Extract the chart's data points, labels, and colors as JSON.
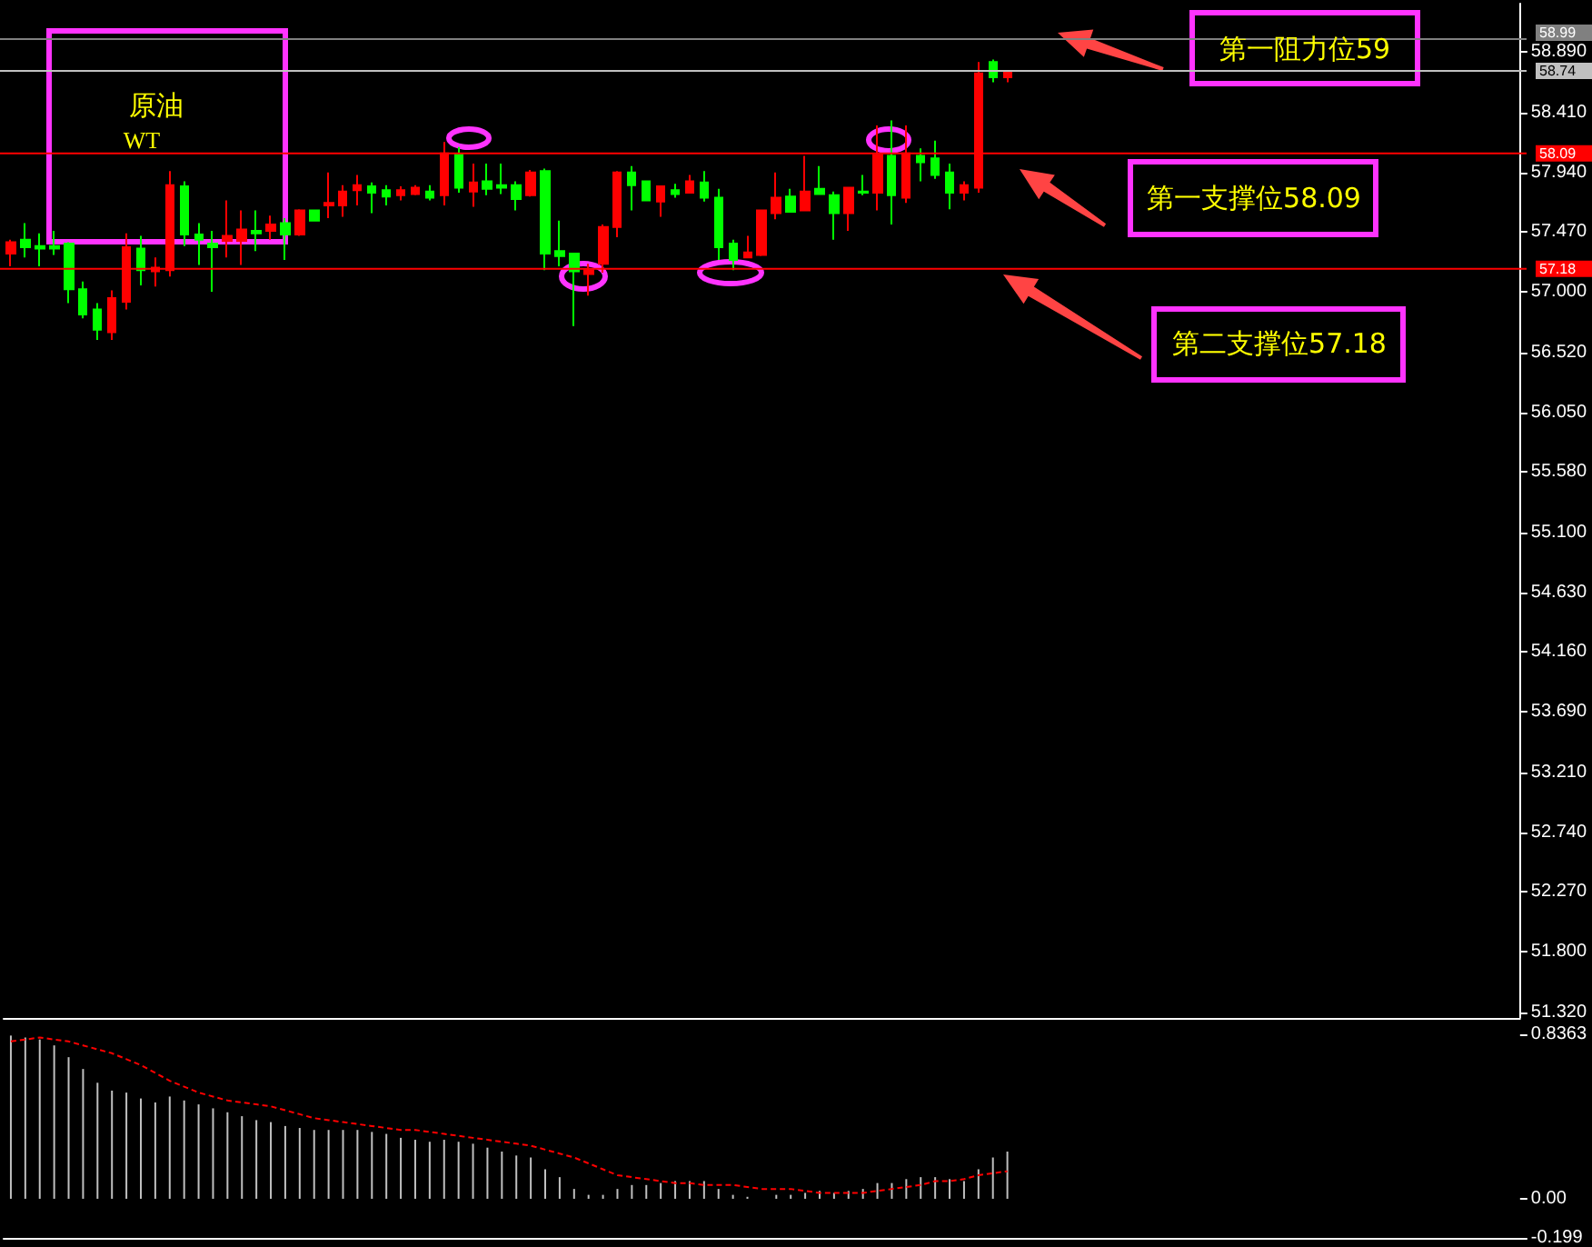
{
  "chart_data": [
    {
      "type": "candlestick",
      "tick_labels": "y",
      "categories": [
        null,
        null,
        null,
        null,
        null,
        null,
        null,
        null,
        null,
        null,
        null,
        null,
        null,
        null,
        null,
        null,
        null,
        null,
        null,
        null,
        null,
        null,
        null,
        null,
        null,
        null,
        null,
        null,
        null,
        null,
        null,
        null,
        null,
        null,
        null,
        null,
        null,
        null,
        null,
        null,
        null,
        null,
        null,
        null,
        null,
        null,
        null,
        null,
        null,
        null,
        null,
        null,
        null,
        null,
        null,
        null,
        null,
        null,
        null,
        null,
        null,
        null,
        null,
        null,
        null,
        null,
        null,
        null,
        null,
        null,
        null,
        null,
        null,
        null,
        null,
        null,
        null,
        null,
        null,
        null,
        null,
        null,
        null,
        null,
        null,
        null,
        null,
        null,
        null,
        null,
        null,
        null,
        null,
        null,
        null,
        null,
        null,
        null,
        null,
        null,
        null,
        null,
        null,
        null,
        null
      ],
      "ohlc": [
        [
          57.3,
          57.41,
          57.2,
          57.39
        ],
        [
          57.41,
          57.54,
          57.27,
          57.35
        ],
        [
          57.36,
          57.46,
          57.2,
          57.34
        ],
        [
          57.36,
          57.48,
          57.29,
          57.34
        ],
        [
          57.38,
          57.39,
          56.91,
          57.02
        ],
        [
          57.02,
          57.08,
          56.79,
          56.82
        ],
        [
          56.86,
          56.91,
          56.62,
          56.7
        ],
        [
          56.68,
          57.01,
          56.62,
          56.95
        ],
        [
          56.92,
          57.46,
          56.86,
          57.35
        ],
        [
          57.34,
          57.44,
          57.05,
          57.17
        ],
        [
          57.16,
          57.27,
          57.04,
          57.19
        ],
        [
          57.17,
          57.95,
          57.12,
          57.84
        ],
        [
          57.83,
          57.87,
          57.36,
          57.45
        ],
        [
          57.45,
          57.54,
          57.21,
          57.41
        ],
        [
          57.38,
          57.48,
          57.0,
          57.35
        ],
        [
          57.4,
          57.72,
          57.27,
          57.44
        ],
        [
          57.4,
          57.64,
          57.21,
          57.49
        ],
        [
          57.48,
          57.64,
          57.32,
          57.46
        ],
        [
          57.48,
          57.6,
          57.41,
          57.53
        ],
        [
          57.54,
          57.58,
          57.25,
          57.45
        ],
        [
          57.45,
          57.65,
          57.44,
          57.64
        ],
        [
          57.64,
          57.64,
          57.56,
          57.56
        ],
        [
          57.68,
          57.94,
          57.58,
          57.7
        ],
        [
          57.68,
          57.84,
          57.59,
          57.79
        ],
        [
          57.8,
          57.92,
          57.68,
          57.84
        ],
        [
          57.83,
          57.86,
          57.62,
          57.78
        ],
        [
          57.8,
          57.84,
          57.68,
          57.75
        ],
        [
          57.76,
          57.83,
          57.72,
          57.8
        ],
        [
          57.77,
          57.84,
          57.76,
          57.82
        ],
        [
          57.79,
          57.84,
          57.72,
          57.74
        ],
        [
          57.76,
          58.18,
          57.68,
          58.09
        ],
        [
          58.08,
          58.14,
          57.78,
          57.82
        ],
        [
          57.79,
          58.01,
          57.67,
          57.86
        ],
        [
          57.87,
          58.01,
          57.76,
          57.81
        ],
        [
          57.84,
          58.01,
          57.77,
          57.82
        ],
        [
          57.84,
          57.87,
          57.64,
          57.73
        ],
        [
          57.76,
          57.96,
          57.75,
          57.94
        ],
        [
          57.95,
          57.97,
          57.17,
          57.3
        ],
        [
          57.32,
          57.56,
          57.2,
          57.28
        ],
        [
          57.3,
          57.3,
          56.73,
          57.16
        ],
        [
          57.14,
          57.22,
          56.97,
          57.17
        ],
        [
          57.22,
          57.53,
          57.15,
          57.51
        ],
        [
          57.51,
          57.95,
          57.43,
          57.94
        ],
        [
          57.94,
          57.99,
          57.64,
          57.84
        ],
        [
          57.87,
          57.87,
          57.72,
          57.72
        ],
        [
          57.71,
          57.83,
          57.59,
          57.83
        ],
        [
          57.8,
          57.85,
          57.74,
          57.77
        ],
        [
          57.78,
          57.92,
          57.78,
          57.87
        ],
        [
          57.86,
          57.95,
          57.71,
          57.74
        ],
        [
          57.74,
          57.81,
          57.25,
          57.35
        ],
        [
          57.38,
          57.41,
          57.17,
          57.25
        ],
        [
          57.27,
          57.44,
          57.27,
          57.31
        ],
        [
          57.29,
          57.64,
          57.28,
          57.64
        ],
        [
          57.62,
          57.94,
          57.57,
          57.74
        ],
        [
          57.75,
          57.81,
          57.63,
          57.63
        ],
        [
          57.64,
          58.07,
          57.64,
          57.79
        ],
        [
          57.81,
          57.99,
          57.77,
          57.77
        ],
        [
          57.76,
          57.79,
          57.41,
          57.62
        ],
        [
          57.62,
          57.82,
          57.48,
          57.82
        ],
        [
          57.79,
          57.92,
          57.76,
          57.78
        ],
        [
          57.78,
          58.31,
          57.64,
          58.08
        ],
        [
          58.07,
          58.35,
          57.53,
          57.76
        ],
        [
          57.74,
          58.31,
          57.7,
          58.09
        ],
        [
          58.07,
          58.13,
          57.87,
          58.02
        ],
        [
          58.05,
          58.19,
          57.89,
          57.92
        ],
        [
          57.94,
          58.01,
          57.65,
          57.78
        ],
        [
          57.78,
          57.87,
          57.72,
          57.84
        ],
        [
          57.82,
          58.81,
          57.78,
          58.72
        ],
        [
          58.81,
          58.83,
          58.65,
          58.69
        ],
        [
          58.69,
          58.74,
          58.65,
          58.74
        ],
        null,
        null,
        null,
        null,
        null,
        null,
        null,
        null,
        null,
        null,
        null,
        null,
        null,
        null,
        null,
        null,
        null,
        null,
        null,
        null,
        null,
        null,
        null,
        null,
        null,
        null,
        null,
        null,
        null,
        null,
        null,
        null,
        null,
        null,
        null
      ],
      "ylim": [
        51.28,
        59.27
      ],
      "yticks": [
        {
          "value": 58.89,
          "label": "58.890"
        },
        {
          "value": 58.41,
          "label": "58.410"
        },
        {
          "value": 57.94,
          "label": "57.940"
        },
        {
          "value": 57.47,
          "label": "57.470"
        },
        {
          "value": 57.0,
          "label": "57.000"
        },
        {
          "value": 56.52,
          "label": "56.520"
        },
        {
          "value": 56.05,
          "label": "56.050"
        },
        {
          "value": 55.58,
          "label": "55.580"
        },
        {
          "value": 55.1,
          "label": "55.100"
        },
        {
          "value": 54.63,
          "label": "54.630"
        },
        {
          "value": 54.16,
          "label": "54.160"
        },
        {
          "value": 53.69,
          "label": "53.690"
        },
        {
          "value": 53.21,
          "label": "53.210"
        },
        {
          "value": 52.74,
          "label": "52.740"
        },
        {
          "value": 52.27,
          "label": "52.270"
        },
        {
          "value": 51.8,
          "label": "51.800"
        },
        {
          "value": 51.32,
          "label": "51.320"
        }
      ],
      "ref_lines": [
        {
          "axis": "y",
          "value": 58.99,
          "label": "58.99",
          "color": "#808080"
        },
        {
          "axis": "y",
          "value": 58.74,
          "label": "58.74",
          "color": "#c0c0c0"
        },
        {
          "axis": "y",
          "value": 58.09,
          "label": "58.09",
          "color": "#ff0000"
        },
        {
          "axis": "y",
          "value": 57.18,
          "label": "57.18",
          "color": "#ff0000"
        }
      ],
      "annotations": [
        "原油",
        "WT",
        "第一阻力位59",
        "第一支撑位58.09",
        "第二支撑位57.18"
      ]
    },
    {
      "type": "bar",
      "tick_labels": "y",
      "categories": [
        null,
        null,
        null,
        null,
        null,
        null,
        null,
        null,
        null,
        null,
        null,
        null,
        null,
        null,
        null,
        null,
        null,
        null,
        null,
        null,
        null,
        null,
        null,
        null,
        null,
        null,
        null,
        null,
        null,
        null,
        null,
        null,
        null,
        null,
        null,
        null,
        null,
        null,
        null,
        null,
        null,
        null,
        null,
        null,
        null,
        null,
        null,
        null,
        null,
        null,
        null,
        null,
        null,
        null,
        null,
        null,
        null,
        null,
        null,
        null,
        null,
        null,
        null,
        null,
        null,
        null,
        null,
        null,
        null,
        null,
        null,
        null,
        null,
        null,
        null,
        null,
        null,
        null,
        null,
        null,
        null,
        null,
        null,
        null,
        null,
        null,
        null,
        null,
        null,
        null,
        null,
        null,
        null,
        null,
        null,
        null,
        null,
        null,
        null,
        null,
        null,
        null,
        null,
        null,
        null
      ],
      "series": [
        {
          "type": "bar",
          "color": "#c0c0c0",
          "values": [
            0.83,
            0.82,
            0.81,
            0.78,
            0.72,
            0.66,
            0.59,
            0.55,
            0.54,
            0.51,
            0.49,
            0.52,
            0.5,
            0.48,
            0.46,
            0.44,
            0.42,
            0.4,
            0.39,
            0.37,
            0.36,
            0.35,
            0.35,
            0.35,
            0.35,
            0.34,
            0.33,
            0.31,
            0.3,
            0.29,
            0.3,
            0.29,
            0.28,
            0.26,
            0.24,
            0.22,
            0.21,
            0.15,
            0.11,
            0.05,
            0.02,
            0.02,
            0.05,
            0.07,
            0.07,
            0.08,
            0.09,
            0.09,
            0.09,
            0.05,
            0.02,
            0.01,
            0,
            0.02,
            0.02,
            0.03,
            0.04,
            0.03,
            0.04,
            0.05,
            0.08,
            0.08,
            0.1,
            0.11,
            0.11,
            0.1,
            0.09,
            0.15,
            0.21,
            0.24,
            null,
            null,
            null,
            null,
            null,
            null,
            null,
            null,
            null,
            null,
            null,
            null,
            null,
            null,
            null,
            null,
            null,
            null,
            null,
            null,
            null,
            null,
            null,
            null,
            null,
            null,
            null,
            null,
            null,
            null,
            null,
            null,
            null,
            null,
            null
          ]
        },
        {
          "type": "line",
          "color": "#ff0000",
          "line_style": "dashed",
          "marker": "none",
          "values": [
            0.8,
            0.81,
            0.82,
            0.81,
            0.8,
            0.78,
            0.76,
            0.74,
            0.71,
            0.68,
            0.64,
            0.6,
            0.57,
            0.54,
            0.52,
            0.5,
            0.49,
            0.48,
            0.47,
            0.45,
            0.43,
            0.41,
            0.4,
            0.39,
            0.38,
            0.37,
            0.36,
            0.35,
            0.35,
            0.34,
            0.33,
            0.32,
            0.31,
            0.3,
            0.29,
            0.28,
            0.27,
            0.25,
            0.23,
            0.21,
            0.18,
            0.15,
            0.12,
            0.11,
            0.1,
            0.09,
            0.08,
            0.08,
            0.07,
            0.07,
            0.07,
            0.06,
            0.05,
            0.05,
            0.05,
            0.04,
            0.03,
            0.03,
            0.03,
            0.03,
            0.04,
            0.05,
            0.06,
            0.07,
            0.09,
            0.09,
            0.1,
            0.12,
            0.13,
            0.14,
            null,
            null,
            null,
            null,
            null,
            null,
            null,
            null,
            null,
            null,
            null,
            null,
            null,
            null,
            null,
            null,
            null,
            null,
            null,
            null,
            null,
            null,
            null,
            null,
            null,
            null,
            null,
            null,
            null,
            null,
            null,
            null,
            null,
            null,
            null
          ]
        }
      ],
      "ylim": [
        -0.199,
        0.8363
      ],
      "yticks": [
        {
          "value": 0.8363,
          "label": "0.8363"
        },
        {
          "value": 0,
          "label": "0.00"
        },
        {
          "value": -0.199,
          "label": "-0.199"
        }
      ]
    }
  ]
}
